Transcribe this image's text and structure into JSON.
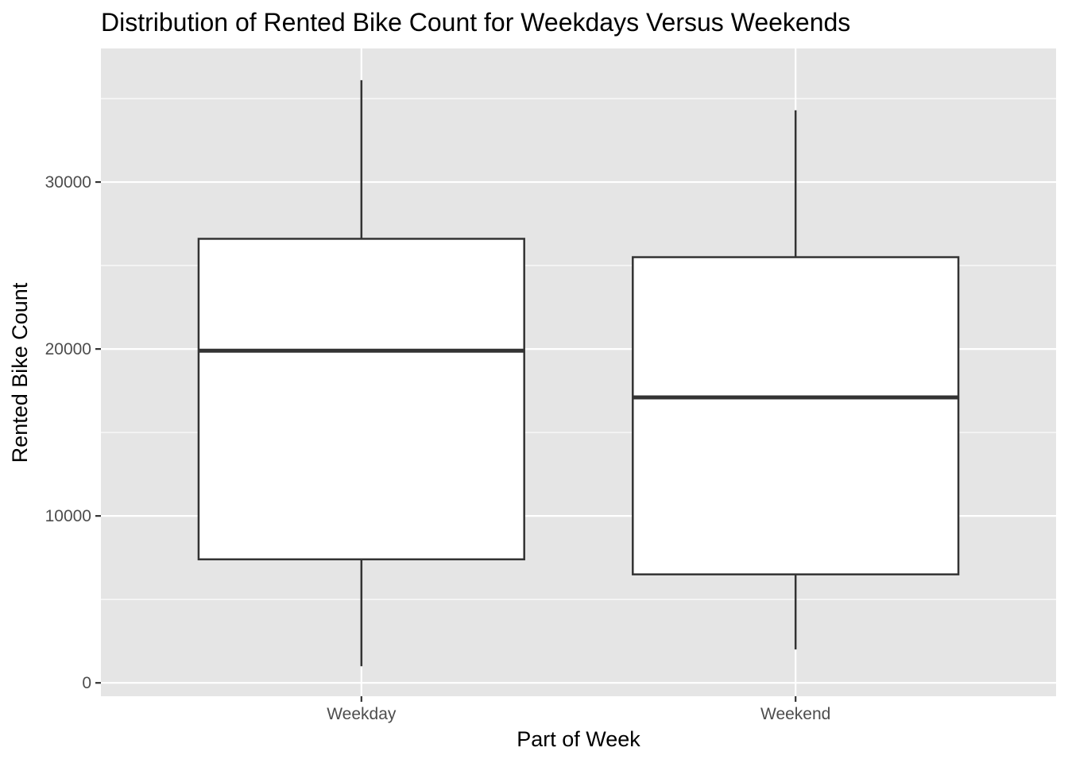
{
  "chart_data": {
    "type": "boxplot",
    "title": "Distribution of Rented Bike Count for Weekdays Versus Weekends",
    "xlabel": "Part of Week",
    "ylabel": "Rented Bike Count",
    "ylim": [
      -800,
      38000
    ],
    "y_ticks": [
      0,
      10000,
      20000,
      30000
    ],
    "y_tick_labels": [
      "0",
      "10000",
      "20000",
      "30000"
    ],
    "grid": true,
    "background": "#e5e5e5",
    "categories": [
      "Weekday",
      "Weekend"
    ],
    "boxes": [
      {
        "category": "Weekday",
        "min": 1000,
        "q1": 7400,
        "median": 19900,
        "q3": 26600,
        "max": 36100
      },
      {
        "category": "Weekend",
        "min": 2000,
        "q1": 6500,
        "median": 17100,
        "q3": 25500,
        "max": 34300
      }
    ]
  }
}
